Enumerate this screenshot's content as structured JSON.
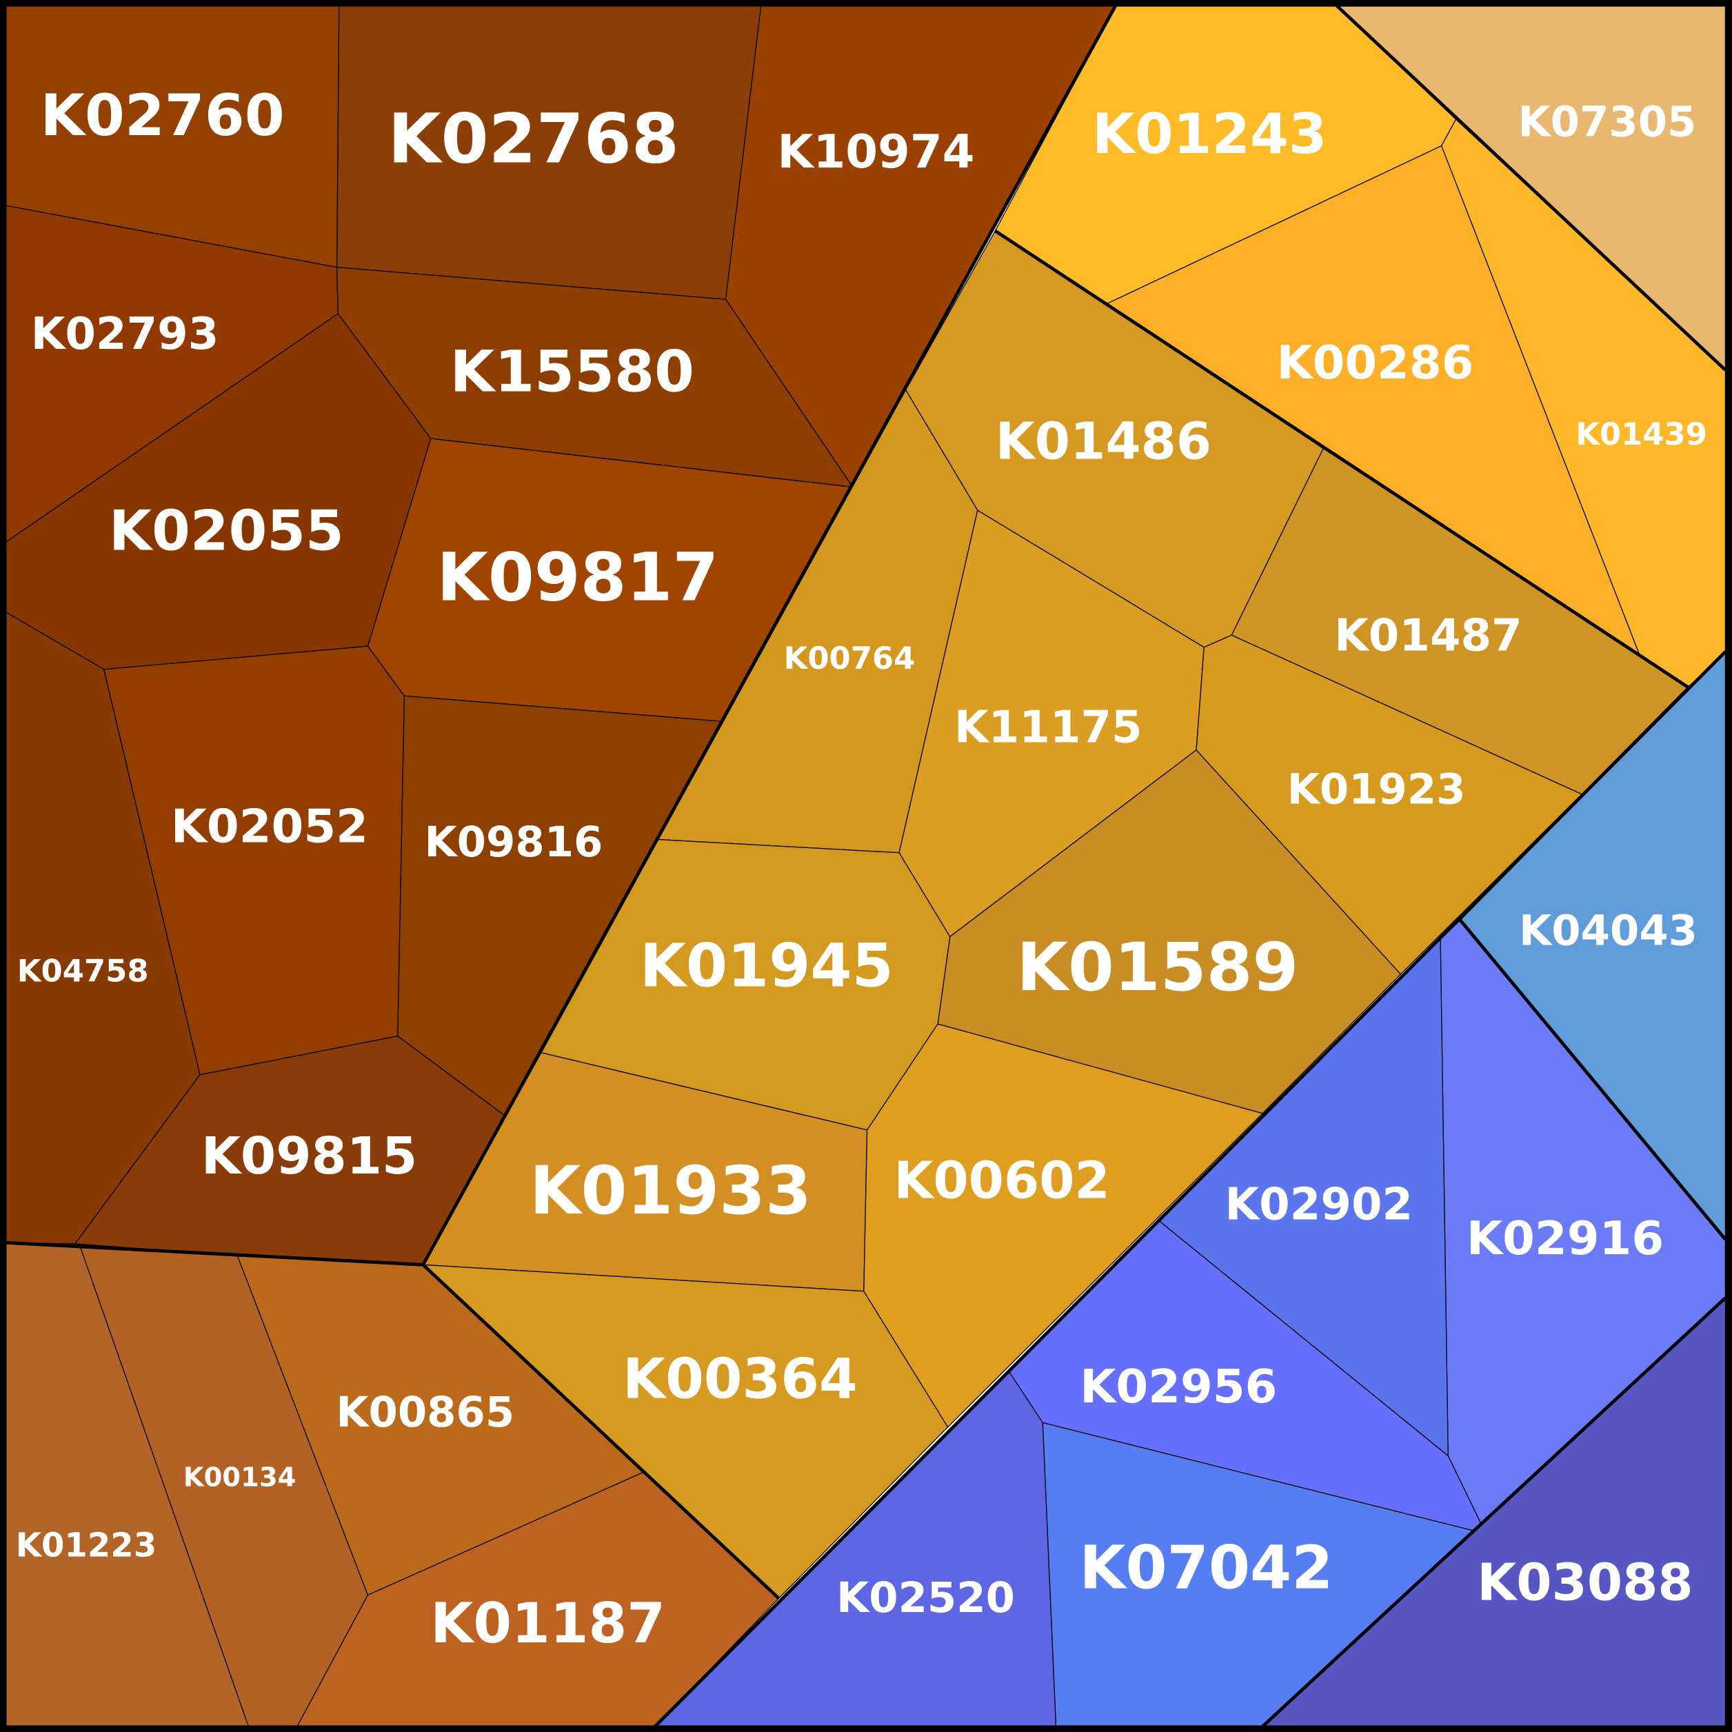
{
  "cells": [
    {
      "label": "K02760"
    },
    {
      "label": "K02768"
    },
    {
      "label": "K10974"
    },
    {
      "label": "K02793"
    },
    {
      "label": "K15580"
    },
    {
      "label": "K02055"
    },
    {
      "label": "K09817"
    },
    {
      "label": "K09816"
    },
    {
      "label": "K02052"
    },
    {
      "label": "K04758"
    },
    {
      "label": "K09815"
    },
    {
      "label": "K01223"
    },
    {
      "label": "K00134"
    },
    {
      "label": "K00865"
    },
    {
      "label": "K01187"
    },
    {
      "label": "K01486"
    },
    {
      "label": "K00764"
    },
    {
      "label": "K11175"
    },
    {
      "label": "K01487"
    },
    {
      "label": "K01923"
    },
    {
      "label": "K01589"
    },
    {
      "label": "K01945"
    },
    {
      "label": "K01933"
    },
    {
      "label": "K00602"
    },
    {
      "label": "K00364"
    },
    {
      "label": "K01243"
    },
    {
      "label": "K07305"
    },
    {
      "label": "K00286"
    },
    {
      "label": "K01439"
    },
    {
      "label": "K04043"
    },
    {
      "label": "K02916"
    },
    {
      "label": "K02902"
    },
    {
      "label": "K02956"
    },
    {
      "label": "K02520"
    },
    {
      "label": "K07042"
    },
    {
      "label": "K03088"
    }
  ]
}
